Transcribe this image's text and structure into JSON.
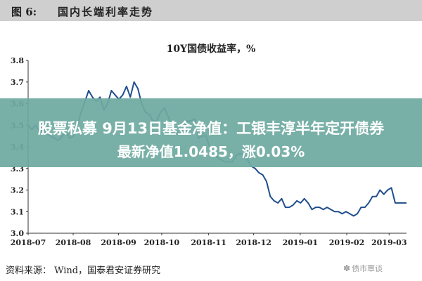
{
  "header": {
    "fig_label": "图 6:",
    "fig_title": "国内长端利率走势"
  },
  "overlay": {
    "line1": "股票私募 9月13日基金净值：工银丰淳半年定开债券",
    "line2": "最新净值1.0485，涨0.03%"
  },
  "footer": {
    "source": "资料来源：  Wind，国泰君安证券研究",
    "watermark": "债市覃谈"
  },
  "colors": {
    "line": "#1f4e8c",
    "overlay": "#6eaaa0",
    "header_bg": "#cfcfcf"
  },
  "chart_data": {
    "type": "line",
    "title": "10Y国债收益率，%",
    "ylim": [
      3.0,
      3.8
    ],
    "yticks": [
      "3.8",
      "3.7",
      "3.6",
      "3.5",
      "3.4",
      "3.3",
      "3.2",
      "3.1",
      "3.0"
    ],
    "xlim": [
      0,
      100
    ],
    "xticks": [
      {
        "label": "2018-07",
        "pos": 0
      },
      {
        "label": "2018-08",
        "pos": 11.9
      },
      {
        "label": "2018-09",
        "pos": 23.9
      },
      {
        "label": "2018-10",
        "pos": 35.3
      },
      {
        "label": "2018-11",
        "pos": 47.7
      },
      {
        "label": "2018-12",
        "pos": 59.6
      },
      {
        "label": "2019-01",
        "pos": 71.9
      },
      {
        "label": "2019-02",
        "pos": 84.2
      },
      {
        "label": "2019-03",
        "pos": 95.4
      }
    ],
    "series": [
      {
        "x": [
          0,
          1,
          2,
          3,
          4,
          5,
          6,
          7,
          8,
          9,
          10,
          11,
          12,
          13,
          14,
          15,
          16,
          17,
          18,
          19,
          20,
          21,
          22,
          23,
          24,
          25,
          26,
          27,
          28,
          29,
          30,
          31,
          32,
          33,
          34,
          35,
          36,
          37,
          38,
          39,
          40,
          41,
          42,
          43,
          44,
          45,
          46,
          47,
          48,
          49,
          50,
          51,
          52,
          53,
          54,
          55,
          56,
          57,
          58,
          59,
          60,
          61,
          62,
          63,
          64,
          65,
          66,
          67,
          68,
          69,
          70,
          71,
          72,
          73,
          74,
          75,
          76,
          77,
          78,
          79,
          80,
          81,
          82,
          83,
          84,
          85,
          86,
          87,
          88,
          89,
          90,
          91,
          92,
          93,
          94,
          95,
          96,
          97,
          98,
          99,
          100
        ],
        "values": [
          3.5,
          3.48,
          3.5,
          3.47,
          3.48,
          3.46,
          3.45,
          3.44,
          3.43,
          3.45,
          3.47,
          3.44,
          3.45,
          3.5,
          3.56,
          3.61,
          3.66,
          3.63,
          3.61,
          3.63,
          3.57,
          3.6,
          3.66,
          3.64,
          3.62,
          3.64,
          3.68,
          3.63,
          3.7,
          3.67,
          3.6,
          3.56,
          3.55,
          3.52,
          3.52,
          3.56,
          3.58,
          3.54,
          3.5,
          3.48,
          3.46,
          3.48,
          3.52,
          3.52,
          3.53,
          3.44,
          3.45,
          3.45,
          3.4,
          3.38,
          3.35,
          3.34,
          3.33,
          3.33,
          3.33,
          3.36,
          3.37,
          3.36,
          3.34,
          3.31,
          3.3,
          3.28,
          3.27,
          3.24,
          3.17,
          3.15,
          3.14,
          3.16,
          3.12,
          3.12,
          3.13,
          3.15,
          3.14,
          3.16,
          3.14,
          3.11,
          3.12,
          3.12,
          3.11,
          3.12,
          3.11,
          3.1,
          3.1,
          3.09,
          3.1,
          3.09,
          3.08,
          3.09,
          3.12,
          3.12,
          3.14,
          3.17,
          3.17,
          3.2,
          3.18,
          3.2,
          3.21,
          3.14,
          3.14,
          3.14,
          3.14
        ]
      }
    ]
  }
}
